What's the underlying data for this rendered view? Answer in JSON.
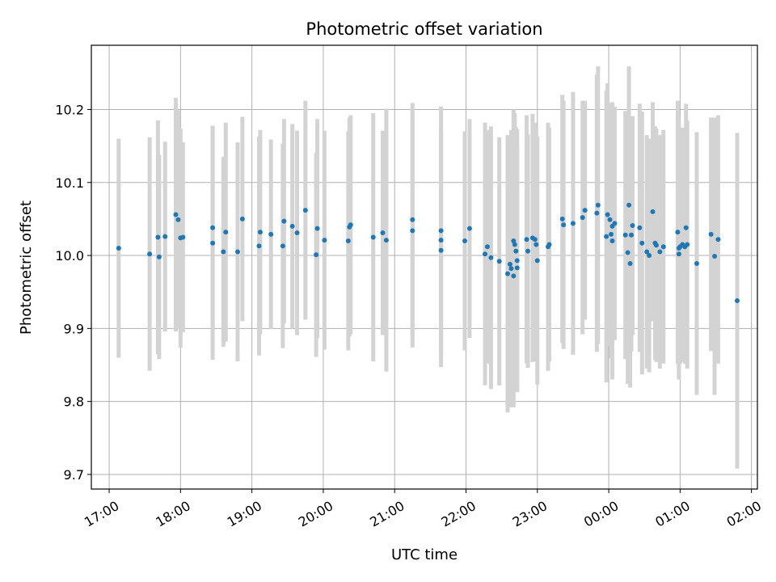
{
  "chart_data": {
    "type": "scatter",
    "title": "Photometric offset variation",
    "xlabel": "UTC time",
    "ylabel": "Photometric offset",
    "grid": true,
    "colors": {
      "point": "#1f77b4",
      "errorbar": "#d3d3d3",
      "grid": "#b0b0b0",
      "axes": "#000000"
    },
    "x_ticks": [
      "17:00",
      "18:00",
      "19:00",
      "20:00",
      "21:00",
      "22:00",
      "23:00",
      "00:00",
      "01:00",
      "02:00"
    ],
    "y_ticks": [
      "9.7",
      "9.8",
      "9.9",
      "10.0",
      "10.1",
      "10.2"
    ],
    "xlim": [
      "16:45",
      "02:05"
    ],
    "ylim": [
      9.68,
      10.288
    ],
    "x_day_boundary": "00:00",
    "x": [
      "17:08",
      "17:34",
      "17:41",
      "17:42",
      "17:47",
      "17:56",
      "17:58",
      "18:02",
      "18:00",
      "18:27",
      "18:27",
      "18:36",
      "18:38",
      "18:48",
      "18:52",
      "19:06",
      "19:07",
      "19:16",
      "19:26",
      "19:27",
      "19:34",
      "19:38",
      "19:45",
      "19:54",
      "19:55",
      "20:01",
      "20:21",
      "20:22",
      "20:23",
      "20:42",
      "20:50",
      "20:53",
      "21:15",
      "21:15",
      "21:39",
      "21:39",
      "21:39",
      "21:59",
      "22:03",
      "22:16",
      "22:18",
      "22:21",
      "22:28",
      "22:35",
      "22:37",
      "22:38",
      "22:40",
      "22:40",
      "22:41",
      "22:42",
      "22:43",
      "22:43",
      "22:51",
      "22:52",
      "22:56",
      "22:59",
      "22:58",
      "23:00",
      "23:09",
      "23:10",
      "23:21",
      "23:22",
      "23:30",
      "23:38",
      "23:40",
      "23:50",
      "23:51",
      "23:58",
      "23:59",
      "00:01",
      "00:02",
      "00:03",
      "00:03",
      "00:05",
      "00:14",
      "00:16",
      "00:17",
      "00:18",
      "00:19",
      "00:20",
      "00:26",
      "00:28",
      "00:32",
      "00:34",
      "00:37",
      "00:39",
      "00:40",
      "00:43",
      "00:46",
      "00:58",
      "00:59",
      "00:59",
      "01:00",
      "01:02",
      "01:04",
      "01:05",
      "01:06",
      "01:14",
      "01:26",
      "01:29",
      "01:32",
      "01:48"
    ],
    "y": [
      10.01,
      10.002,
      10.025,
      9.998,
      10.026,
      10.056,
      10.049,
      10.025,
      10.024,
      10.038,
      10.017,
      10.005,
      10.032,
      10.005,
      10.05,
      10.013,
      10.032,
      10.029,
      10.013,
      10.047,
      10.04,
      10.031,
      10.062,
      10.001,
      10.037,
      10.021,
      10.02,
      10.039,
      10.042,
      10.025,
      10.031,
      10.021,
      10.049,
      10.034,
      10.034,
      10.021,
      10.007,
      10.02,
      10.037,
      10.002,
      10.012,
      9.997,
      9.992,
      9.975,
      9.988,
      9.982,
      10.02,
      9.972,
      10.015,
      10.006,
      9.983,
      9.993,
      10.022,
      10.006,
      10.024,
      10.015,
      10.022,
      9.993,
      10.012,
      10.015,
      10.05,
      10.042,
      10.044,
      10.052,
      10.062,
      10.058,
      10.069,
      10.026,
      10.056,
      10.049,
      10.029,
      10.02,
      10.04,
      10.044,
      10.028,
      10.004,
      10.069,
      9.989,
      10.028,
      10.041,
      10.038,
      10.017,
      10.005,
      10.0,
      10.06,
      10.017,
      10.014,
      10.005,
      10.012,
      10.032,
      10.01,
      10.002,
      10.012,
      10.015,
      10.012,
      10.038,
      10.015,
      9.989,
      10.029,
      9.999,
      10.022,
      9.938
    ],
    "yerr": [
      0.15,
      0.16,
      0.16,
      0.14,
      0.13,
      0.16,
      0.15,
      0.13,
      0.15,
      0.14,
      0.16,
      0.13,
      0.15,
      0.15,
      0.14,
      0.15,
      0.14,
      0.13,
      0.14,
      0.14,
      0.14,
      0.14,
      0.15,
      0.14,
      0.15,
      0.15,
      0.15,
      0.15,
      0.15,
      0.17,
      0.14,
      0.18,
      0.16,
      0.16,
      0.17,
      0.15,
      0.16,
      0.15,
      0.15,
      0.18,
      0.16,
      0.18,
      0.17,
      0.19,
      0.17,
      0.19,
      0.18,
      0.18,
      0.18,
      0.17,
      0.17,
      0.18,
      0.17,
      0.16,
      0.17,
      0.16,
      0.16,
      0.17,
      0.17,
      0.16,
      0.17,
      0.17,
      0.18,
      0.16,
      0.15,
      0.19,
      0.19,
      0.2,
      0.18,
      0.16,
      0.17,
      0.19,
      0.16,
      0.16,
      0.17,
      0.18,
      0.19,
      0.17,
      0.16,
      0.15,
      0.17,
      0.18,
      0.16,
      0.16,
      0.15,
      0.16,
      0.16,
      0.16,
      0.16,
      0.18,
      0.18,
      0.17,
      0.16,
      0.16,
      0.16,
      0.17,
      0.17,
      0.18,
      0.16,
      0.19,
      0.17,
      0.23
    ]
  }
}
